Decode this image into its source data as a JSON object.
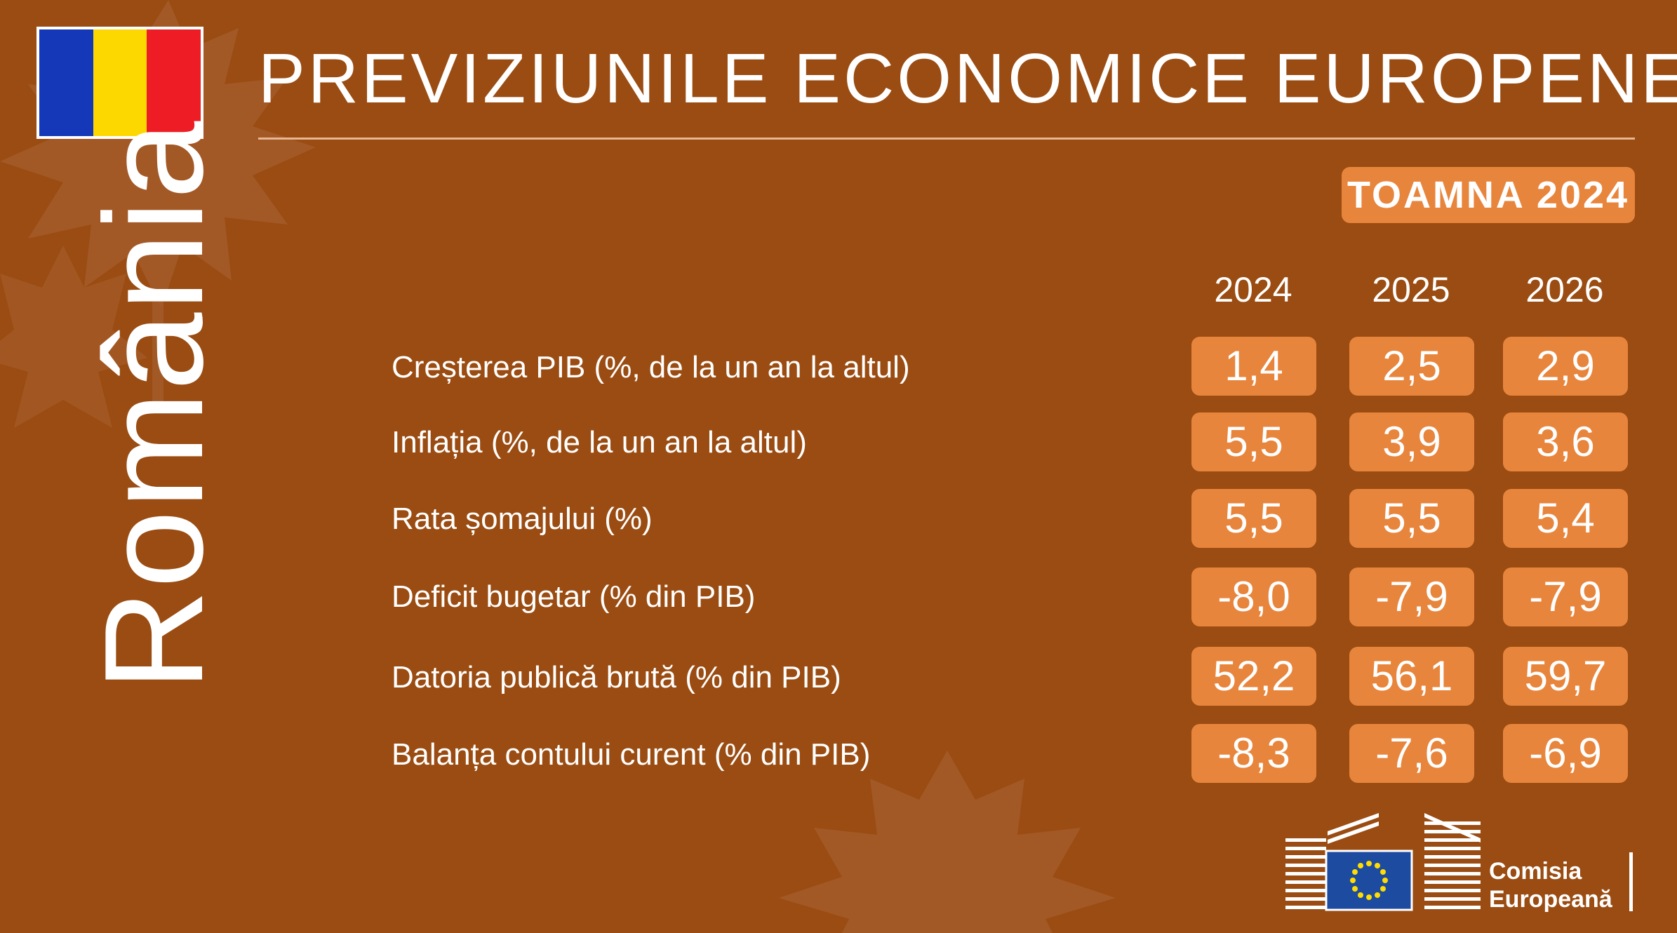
{
  "header": {
    "title": "PREVIZIUNILE ECONOMICE EUROPENE",
    "season_badge": "TOAMNA 2024"
  },
  "country": {
    "name": "România",
    "flag_colors": [
      "#1538b8",
      "#fdd800",
      "#ee1c25"
    ]
  },
  "table": {
    "years": [
      "2024",
      "2025",
      "2026"
    ],
    "rows": [
      {
        "label": "Creșterea PIB (%, de la un an la altul)",
        "values": [
          "1,4",
          "2,5",
          "2,9"
        ]
      },
      {
        "label": "Inflația (%, de la un an la altul)",
        "values": [
          "5,5",
          "3,9",
          "3,6"
        ]
      },
      {
        "label": "Rata șomajului (%)",
        "values": [
          "5,5",
          "5,5",
          "5,4"
        ]
      },
      {
        "label": "Deficit bugetar (% din PIB)",
        "values": [
          "-8,0",
          "-7,9",
          "-7,9"
        ]
      },
      {
        "label": "Datoria publică brută (% din PIB)",
        "values": [
          "52,2",
          "56,1",
          "59,7"
        ]
      },
      {
        "label": "Balanța contului curent (% din PIB)",
        "values": [
          "-8,3",
          "-7,6",
          "-6,9"
        ]
      }
    ]
  },
  "footer": {
    "logo_line1": "Comisia",
    "logo_line2": "Europeană",
    "logo_icon": "european-commission-building-icon"
  },
  "colors": {
    "background": "#9a4c12",
    "accent": "#e8853c",
    "leaf": "#a55c2a",
    "eu_blue": "#1d4ba0",
    "eu_star": "#ffdd00"
  }
}
